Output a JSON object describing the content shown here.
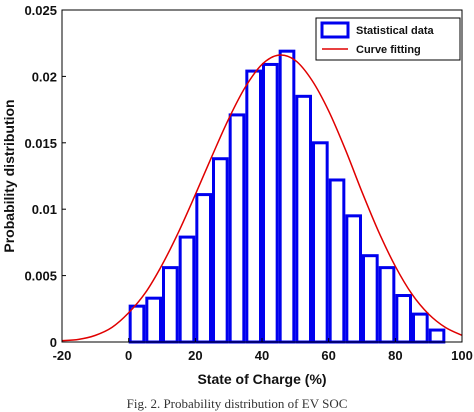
{
  "chart_data": {
    "type": "bar",
    "xlabel": "State of Charge (%)",
    "ylabel": "Probability distribution",
    "xlim": [
      -20,
      100
    ],
    "ylim": [
      0,
      0.025
    ],
    "xticks": [
      "-20",
      "0",
      "20",
      "40",
      "60",
      "80",
      "100"
    ],
    "yticks": [
      "0",
      "0.005",
      "0.01",
      "0.015",
      "0.02",
      "0.025"
    ],
    "grid": false,
    "legend_position": "top-right",
    "series": [
      {
        "name": "Statistical data",
        "type": "bar",
        "color": "#0000ee",
        "bin_width": 5,
        "bin_start": [
          0,
          5,
          10,
          15,
          20,
          25,
          30,
          35,
          40,
          45,
          50,
          55,
          60,
          65,
          70,
          75,
          80,
          85,
          90
        ],
        "values": [
          0.0027,
          0.0033,
          0.0056,
          0.0079,
          0.0111,
          0.0138,
          0.0171,
          0.0204,
          0.0209,
          0.0219,
          0.0185,
          0.015,
          0.0122,
          0.0095,
          0.0065,
          0.0056,
          0.0035,
          0.0021,
          0.0009
        ]
      },
      {
        "name": "Curve fitting",
        "type": "line",
        "color": "#e00000",
        "x": [
          -20,
          -15,
          -10,
          -5,
          0,
          5,
          10,
          15,
          20,
          25,
          30,
          35,
          40,
          45,
          50,
          55,
          60,
          65,
          70,
          75,
          80,
          85,
          90,
          95,
          100
        ],
        "y": [
          0.0001,
          0.0002,
          0.0005,
          0.0011,
          0.0022,
          0.0037,
          0.0058,
          0.0083,
          0.0111,
          0.014,
          0.0168,
          0.0192,
          0.0209,
          0.0216,
          0.0212,
          0.0197,
          0.0174,
          0.0145,
          0.0113,
          0.0083,
          0.0057,
          0.0036,
          0.0021,
          0.0011,
          0.0005
        ]
      }
    ]
  },
  "caption": "Fig. 2. Probability distribution of EV SOC"
}
